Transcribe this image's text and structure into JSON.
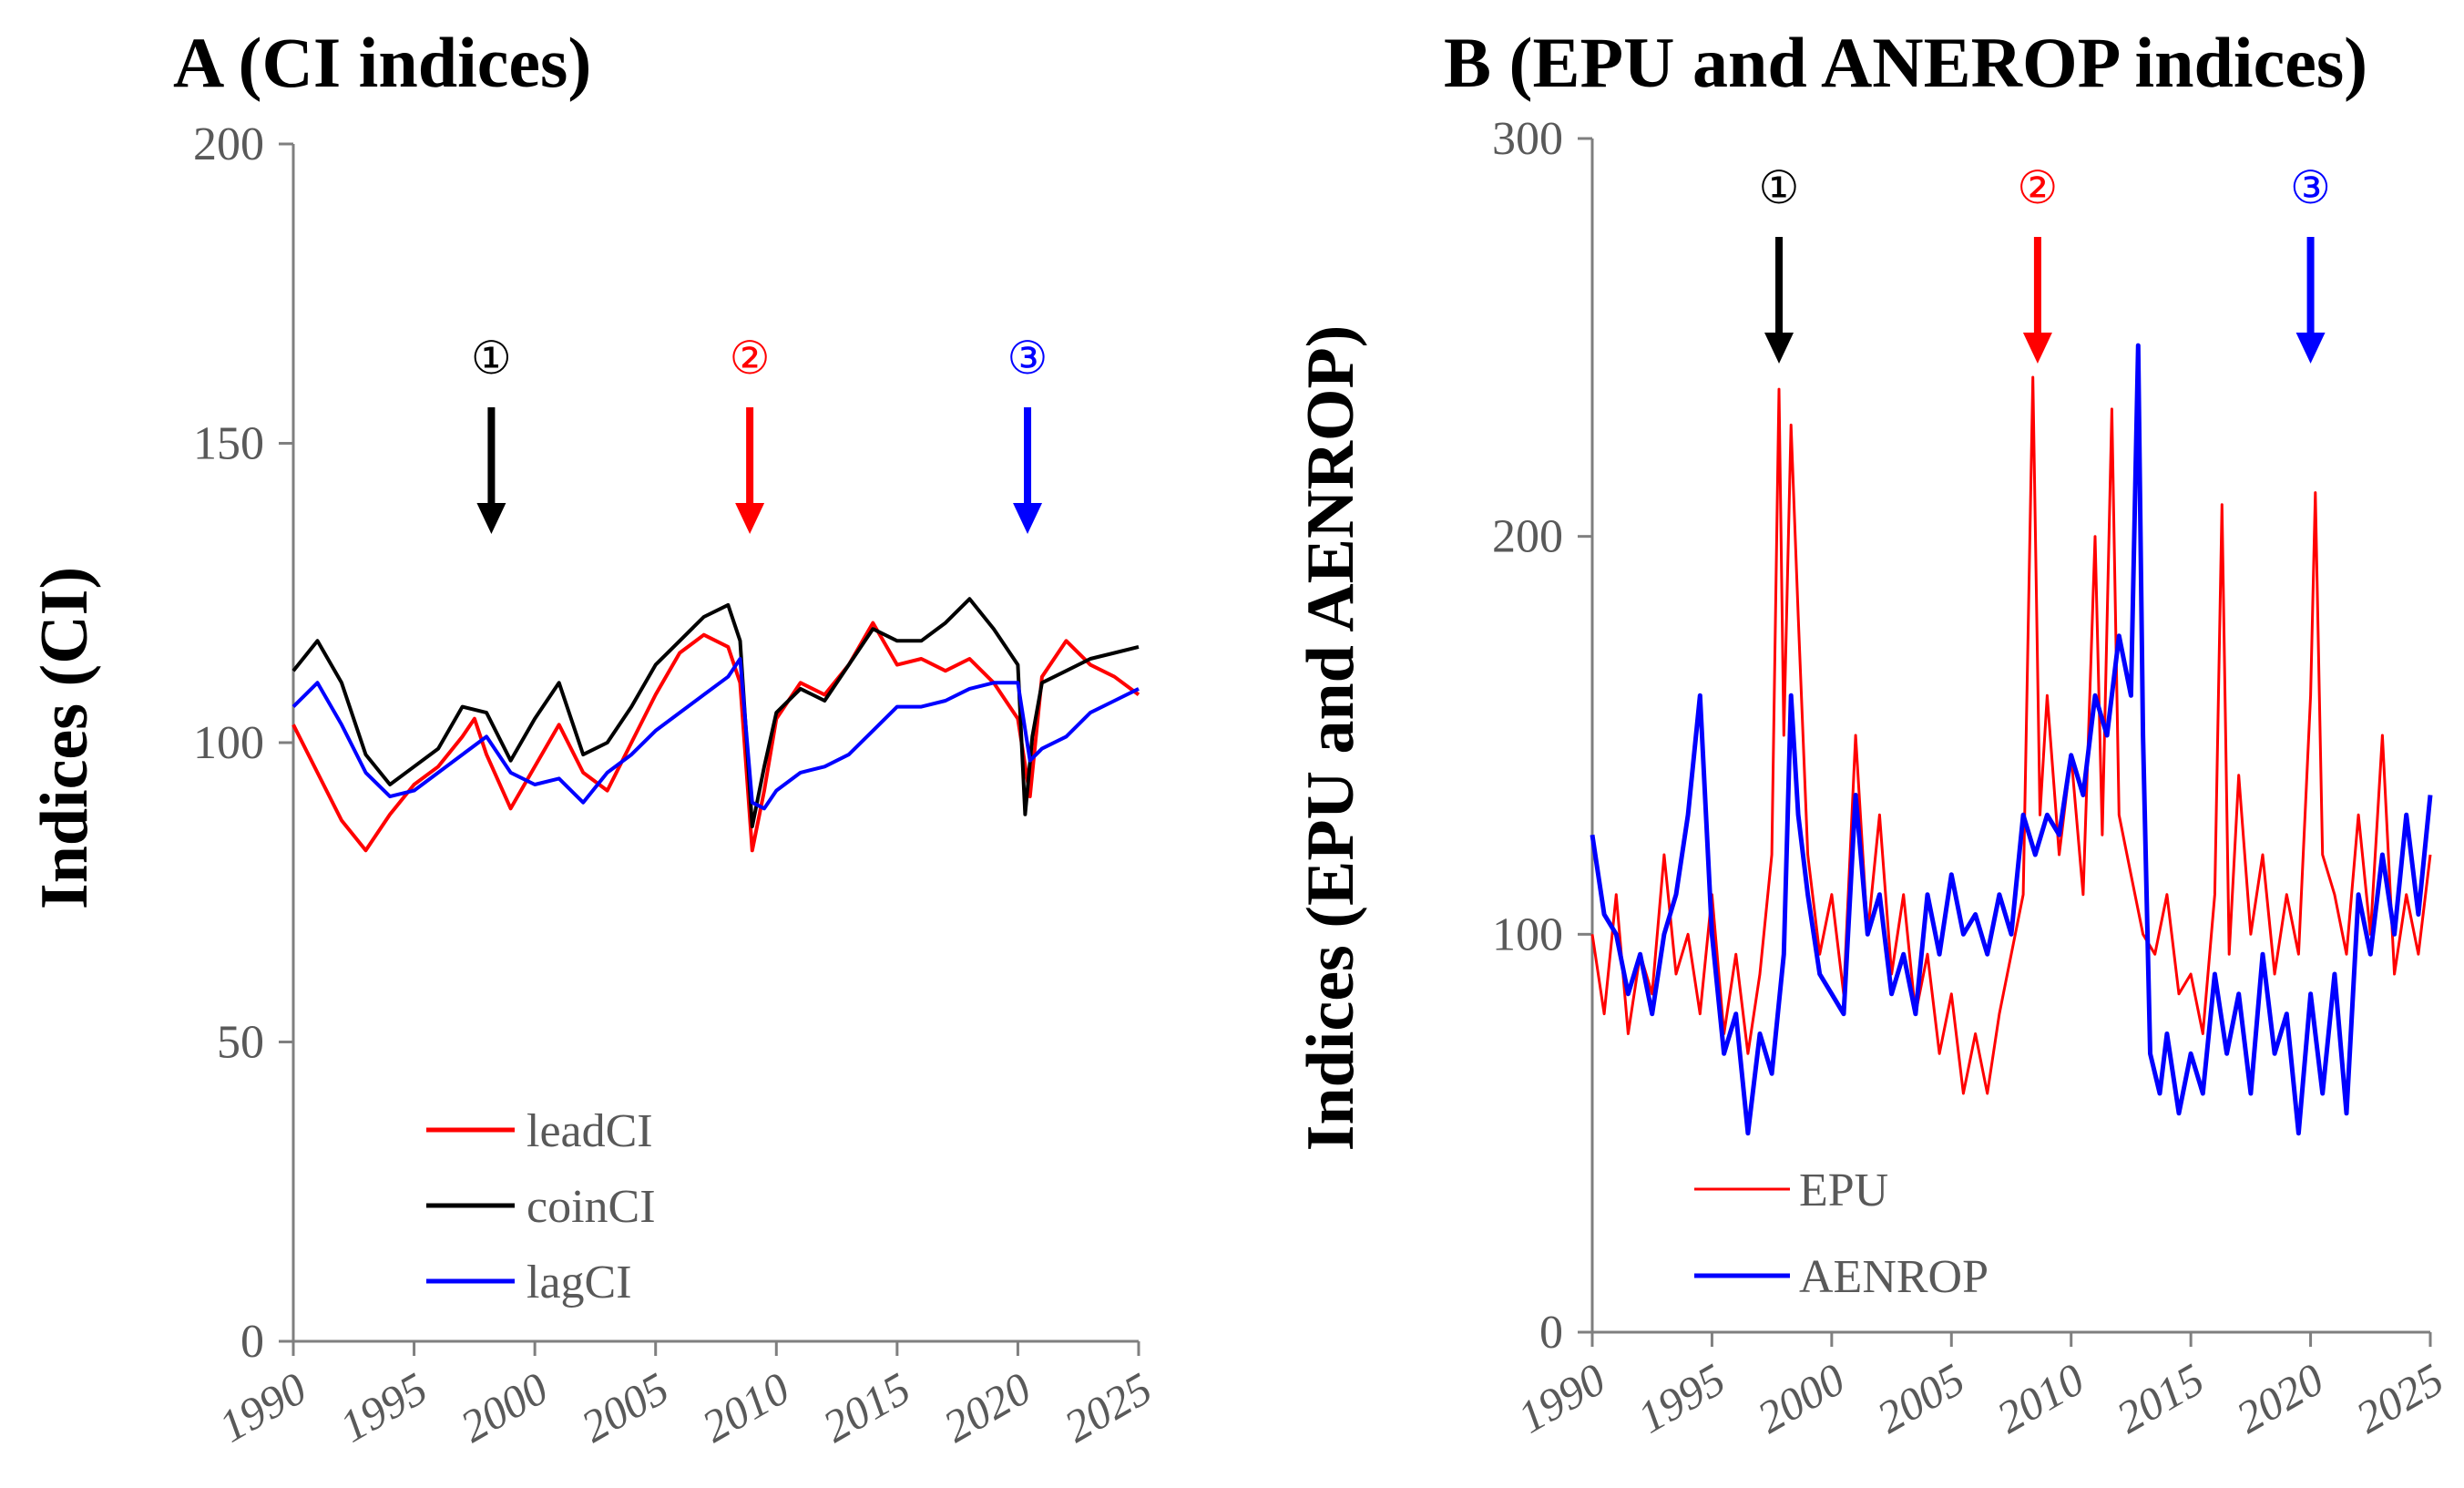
{
  "chart_data": [
    {
      "type": "line",
      "panel": "A",
      "title": "A (CI indices)",
      "xlabel": "",
      "ylabel": "Indices (CI)",
      "xlim": [
        1990,
        2025
      ],
      "ylim": [
        0,
        200
      ],
      "xticks": [
        "1990",
        "1995",
        "2000",
        "2005",
        "2010",
        "2015",
        "2020",
        "2025"
      ],
      "yticks": [
        "0",
        "50",
        "100",
        "150",
        "200"
      ],
      "legend_position": "bottom-left",
      "series": [
        {
          "name": "leadCI",
          "color": "#ff0000",
          "x": [
            1990,
            1991,
            1992,
            1993,
            1994,
            1995,
            1996,
            1997,
            1997.5,
            1998,
            1999,
            2000,
            2001,
            2002,
            2003,
            2004,
            2005,
            2006,
            2007,
            2008,
            2008.5,
            2009,
            2009.5,
            2010,
            2011,
            2012,
            2013,
            2014,
            2015,
            2016,
            2017,
            2018,
            2019,
            2020,
            2020.5,
            2021,
            2022,
            2023,
            2024,
            2025
          ],
          "values": [
            103,
            95,
            87,
            82,
            88,
            93,
            96,
            101,
            104,
            98,
            89,
            96,
            103,
            95,
            92,
            100,
            108,
            115,
            118,
            116,
            110,
            82,
            92,
            104,
            110,
            108,
            113,
            120,
            113,
            114,
            112,
            114,
            110,
            104,
            91,
            111,
            117,
            113,
            111,
            108
          ]
        },
        {
          "name": "coinCI",
          "color": "#000000",
          "x": [
            1990,
            1991,
            1992,
            1993,
            1994,
            1995,
            1996,
            1997,
            1998,
            1999,
            2000,
            2001,
            2002,
            2003,
            2004,
            2005,
            2006,
            2007,
            2008,
            2008.5,
            2009,
            2009.5,
            2010,
            2011,
            2012,
            2013,
            2014,
            2015,
            2016,
            2017,
            2018,
            2019,
            2020,
            2020.3,
            2020.6,
            2021,
            2022,
            2023,
            2024,
            2025
          ],
          "values": [
            112,
            117,
            110,
            98,
            93,
            96,
            99,
            106,
            105,
            97,
            104,
            110,
            98,
            100,
            106,
            113,
            117,
            121,
            123,
            117,
            86,
            96,
            105,
            109,
            107,
            113,
            119,
            117,
            117,
            120,
            124,
            119,
            113,
            88,
            101,
            110,
            112,
            114,
            115,
            116
          ]
        },
        {
          "name": "lagCI",
          "color": "#0000ff",
          "x": [
            1990,
            1991,
            1992,
            1993,
            1994,
            1995,
            1996,
            1997,
            1998,
            1999,
            2000,
            2001,
            2002,
            2003,
            2004,
            2005,
            2006,
            2007,
            2008,
            2008.5,
            2009,
            2009.5,
            2010,
            2011,
            2012,
            2013,
            2014,
            2015,
            2016,
            2017,
            2018,
            2019,
            2020,
            2020.5,
            2021,
            2022,
            2023,
            2024,
            2025
          ],
          "values": [
            106,
            110,
            103,
            95,
            91,
            92,
            95,
            98,
            101,
            95,
            93,
            94,
            90,
            95,
            98,
            102,
            105,
            108,
            111,
            114,
            90,
            89,
            92,
            95,
            96,
            98,
            102,
            106,
            106,
            107,
            109,
            110,
            110,
            97,
            99,
            101,
            105,
            107,
            109
          ]
        }
      ],
      "annotations": [
        {
          "label": "①",
          "x": 1998.2,
          "color": "#000000"
        },
        {
          "label": "②",
          "x": 2008.9,
          "color": "#ff0000"
        },
        {
          "label": "③",
          "x": 2020.4,
          "color": "#0000ff"
        }
      ]
    },
    {
      "type": "line",
      "panel": "B",
      "title": "B (EPU and ANEROP indices)",
      "xlabel": "",
      "ylabel": "Indices (EPU and AENROP)",
      "xlim": [
        1990,
        2025
      ],
      "ylim": [
        0,
        300
      ],
      "xticks": [
        "1990",
        "1995",
        "2000",
        "2005",
        "2010",
        "2015",
        "2020",
        "2025"
      ],
      "yticks": [
        "0",
        "100",
        "200",
        "300"
      ],
      "legend_position": "bottom-left",
      "series": [
        {
          "name": "EPU",
          "color": "#ff0000",
          "x": [
            1990,
            1990.5,
            1991,
            1991.5,
            1992,
            1992.5,
            1993,
            1993.5,
            1994,
            1994.5,
            1995,
            1995.5,
            1996,
            1996.5,
            1997,
            1997.5,
            1997.8,
            1998,
            1998.3,
            1998.6,
            1999,
            1999.5,
            2000,
            2000.5,
            2001,
            2001.5,
            2002,
            2002.5,
            2003,
            2003.5,
            2004,
            2004.5,
            2005,
            2005.5,
            2006,
            2006.5,
            2007,
            2007.5,
            2008,
            2008.4,
            2008.7,
            2009,
            2009.5,
            2010,
            2010.5,
            2011,
            2011.3,
            2011.7,
            2012,
            2012.5,
            2013,
            2013.5,
            2014,
            2014.5,
            2015,
            2015.5,
            2016,
            2016.3,
            2016.6,
            2017,
            2017.5,
            2018,
            2018.5,
            2019,
            2019.5,
            2020,
            2020.2,
            2020.5,
            2021,
            2021.5,
            2022,
            2022.5,
            2023,
            2023.5,
            2024,
            2024.5,
            2025
          ],
          "values": [
            100,
            80,
            110,
            75,
            95,
            85,
            120,
            90,
            100,
            80,
            110,
            75,
            95,
            70,
            90,
            120,
            237,
            150,
            228,
            180,
            120,
            95,
            110,
            85,
            150,
            100,
            130,
            90,
            110,
            80,
            95,
            70,
            85,
            60,
            75,
            60,
            80,
            95,
            110,
            240,
            130,
            160,
            120,
            145,
            110,
            200,
            125,
            232,
            130,
            115,
            100,
            95,
            110,
            85,
            90,
            75,
            110,
            208,
            95,
            140,
            100,
            120,
            90,
            110,
            95,
            160,
            211,
            120,
            110,
            95,
            130,
            100,
            150,
            90,
            110,
            95,
            120
          ]
        },
        {
          "name": "AENROP",
          "color": "#0000ff",
          "x": [
            1990,
            1990.5,
            1991,
            1991.5,
            1992,
            1992.5,
            1993,
            1993.5,
            1994,
            1994.5,
            1995,
            1995.5,
            1996,
            1996.5,
            1997,
            1997.5,
            1998,
            1998.3,
            1998.6,
            1999,
            1999.5,
            2000,
            2000.5,
            2001,
            2001.5,
            2002,
            2002.5,
            2003,
            2003.5,
            2004,
            2004.5,
            2005,
            2005.5,
            2006,
            2006.5,
            2007,
            2007.5,
            2008,
            2008.5,
            2009,
            2009.5,
            2010,
            2010.5,
            2011,
            2011.5,
            2012,
            2012.5,
            2012.8,
            2013,
            2013.3,
            2013.7,
            2014,
            2014.5,
            2015,
            2015.5,
            2016,
            2016.5,
            2017,
            2017.5,
            2018,
            2018.5,
            2019,
            2019.5,
            2020,
            2020.5,
            2021,
            2021.5,
            2022,
            2022.5,
            2023,
            2023.5,
            2024,
            2024.5,
            2025
          ],
          "values": [
            125,
            105,
            100,
            85,
            95,
            80,
            100,
            110,
            130,
            160,
            100,
            70,
            80,
            50,
            75,
            65,
            95,
            160,
            130,
            110,
            90,
            85,
            80,
            135,
            100,
            110,
            85,
            95,
            80,
            110,
            95,
            115,
            100,
            105,
            95,
            110,
            100,
            130,
            120,
            130,
            125,
            145,
            135,
            160,
            150,
            175,
            160,
            248,
            150,
            70,
            60,
            75,
            55,
            70,
            60,
            90,
            70,
            85,
            60,
            95,
            70,
            80,
            50,
            85,
            60,
            90,
            55,
            110,
            95,
            120,
            100,
            130,
            105,
            135
          ]
        }
      ],
      "annotations": [
        {
          "label": "①",
          "x": 1997.8,
          "color": "#000000"
        },
        {
          "label": "②",
          "x": 2008.6,
          "color": "#ff0000"
        },
        {
          "label": "③",
          "x": 2020.0,
          "color": "#0000ff"
        }
      ]
    }
  ]
}
